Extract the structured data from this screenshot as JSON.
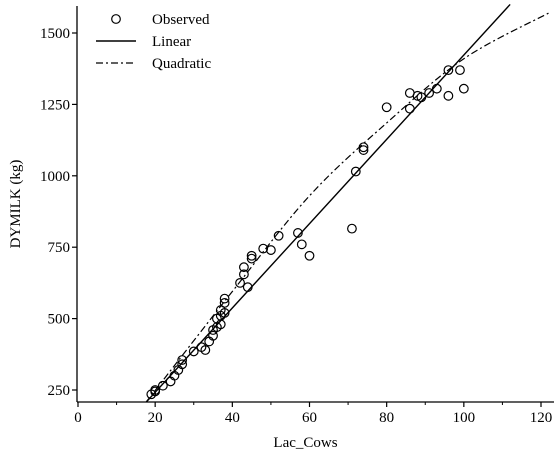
{
  "chart_data": {
    "type": "scatter",
    "xlabel": "Lac_Cows",
    "ylabel": "DYMILK (kg)",
    "xlim": [
      0,
      122
    ],
    "ylim": [
      200,
      1600
    ],
    "x_ticks": [
      0,
      20,
      40,
      60,
      80,
      100,
      120
    ],
    "y_ticks": [
      250,
      500,
      750,
      1000,
      1250,
      1500
    ],
    "legend": {
      "placement": "top-left",
      "entries": [
        {
          "label": "Observed",
          "marker": "open-circle"
        },
        {
          "label": "Linear",
          "line": "solid"
        },
        {
          "label": "Quadratic",
          "line": "dash-dot"
        }
      ]
    },
    "series": [
      {
        "name": "Observed",
        "kind": "points",
        "x": [
          19,
          20,
          20,
          22,
          24,
          25,
          26,
          27,
          27,
          30,
          32,
          33,
          34,
          35,
          35,
          36,
          36,
          37,
          37,
          37,
          38,
          38,
          38,
          42,
          43,
          43,
          44,
          45,
          45,
          48,
          50,
          52,
          57,
          58,
          60,
          71,
          72,
          74,
          74,
          80,
          86,
          86,
          88,
          89,
          91,
          93,
          96,
          96,
          99,
          100
        ],
        "y": [
          235,
          245,
          250,
          265,
          280,
          300,
          320,
          340,
          355,
          385,
          400,
          390,
          420,
          440,
          460,
          470,
          500,
          480,
          510,
          530,
          520,
          555,
          570,
          625,
          655,
          680,
          610,
          710,
          720,
          745,
          740,
          790,
          800,
          760,
          720,
          815,
          1015,
          1100,
          1090,
          1240,
          1290,
          1235,
          1280,
          1275,
          1290,
          1305,
          1370,
          1280,
          1370,
          1305
        ]
      },
      {
        "name": "Linear",
        "kind": "line",
        "x": [
          17.5,
          112
        ],
        "y": [
          205,
          1600
        ]
      },
      {
        "name": "Quadratic",
        "kind": "curve",
        "x": [
          17.5,
          40,
          60,
          80,
          100,
          122
        ],
        "y": [
          205,
          595,
          930,
          1185,
          1410,
          1570
        ]
      }
    ]
  }
}
